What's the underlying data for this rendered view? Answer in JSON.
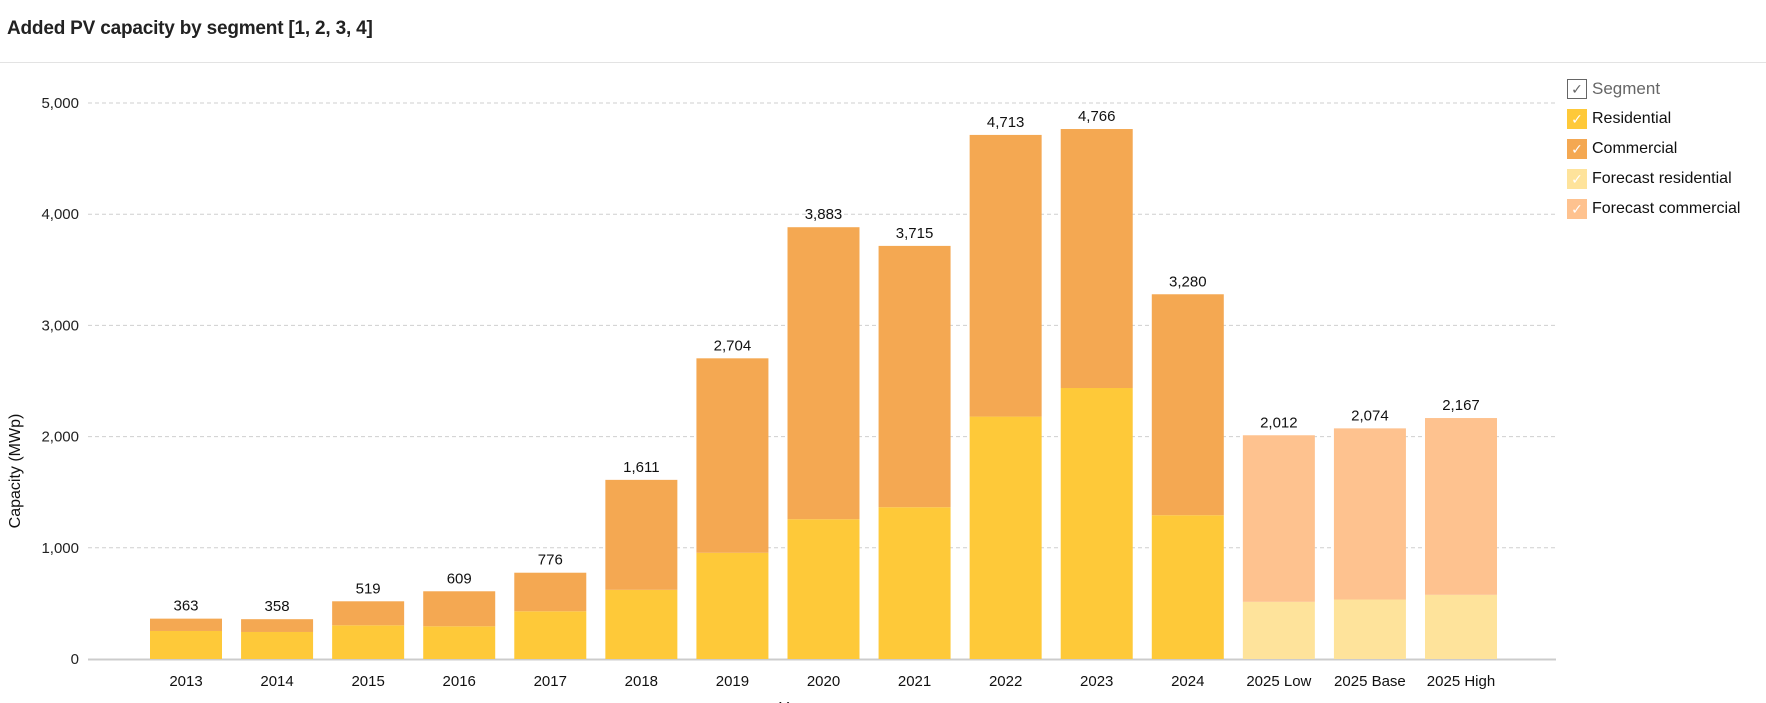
{
  "title": "Added PV capacity by segment [1, 2, 3, 4]",
  "legend": {
    "title": "Segment",
    "check_glyph": "✓",
    "items": [
      {
        "label": "Residential",
        "color": "#FEC939"
      },
      {
        "label": "Commercial",
        "color": "#F4A852"
      },
      {
        "label": "Forecast residential",
        "color": "#FEE39B"
      },
      {
        "label": "Forecast commercial",
        "color": "#FEC28F"
      }
    ]
  },
  "chart_data": {
    "type": "bar",
    "stacked": true,
    "title": "Added PV capacity by segment [1, 2, 3, 4]",
    "xlabel": "Year",
    "ylabel": "Capacity (MWp)",
    "ylim": [
      0,
      5000
    ],
    "yticks": [
      0,
      1000,
      2000,
      3000,
      4000,
      5000
    ],
    "ytick_labels": [
      "0",
      "1,000",
      "2,000",
      "3,000",
      "4,000",
      "5,000"
    ],
    "grid": true,
    "legend_position": "right",
    "categories": [
      "2013",
      "2014",
      "2015",
      "2016",
      "2017",
      "2018",
      "2019",
      "2020",
      "2021",
      "2022",
      "2023",
      "2024",
      "2025 Low",
      "2025 Base",
      "2025 High"
    ],
    "forecast": [
      false,
      false,
      false,
      false,
      false,
      false,
      false,
      false,
      false,
      false,
      false,
      false,
      true,
      true,
      true
    ],
    "series": [
      {
        "name": "Residential",
        "values": [
          252,
          243,
          303,
          294,
          429,
          622,
          955,
          1257,
          1365,
          2180,
          2437,
          1293,
          514,
          535,
          577
        ]
      },
      {
        "name": "Commercial",
        "values": [
          111,
          115,
          216,
          315,
          347,
          989,
          1749,
          2626,
          2350,
          2533,
          2329,
          1987,
          1498,
          1539,
          1590
        ]
      }
    ],
    "totals": [
      363,
      358,
      519,
      609,
      776,
      1611,
      2704,
      3883,
      3715,
      4713,
      4766,
      3280,
      2012,
      2074,
      2167
    ],
    "total_labels": [
      "363",
      "358",
      "519",
      "609",
      "776",
      "1,611",
      "2,704",
      "3,883",
      "3,715",
      "4,713",
      "4,766",
      "3,280",
      "2,012",
      "2,074",
      "2,167"
    ]
  }
}
